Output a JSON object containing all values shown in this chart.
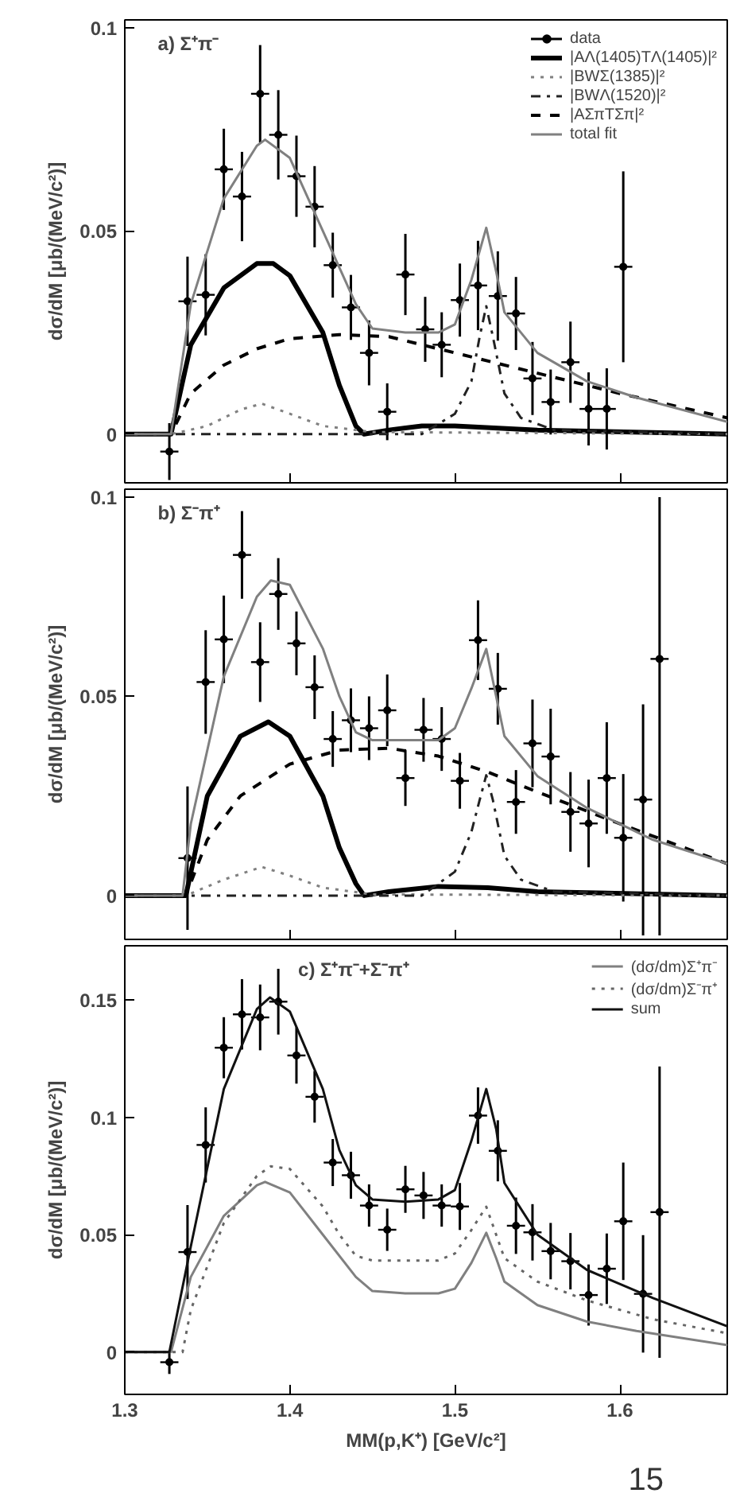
{
  "chart_data": [
    {
      "type": "line",
      "annotations": [
        "a) Σ⁺π⁻"
      ],
      "ylabel": "dσ/dM [μb/(MeV/c²)]",
      "xlim": [
        1.3,
        1.665
      ],
      "ylim": [
        -0.012,
        0.102
      ],
      "xticks": [
        1.3,
        1.4,
        1.5,
        1.6
      ],
      "yticks": [
        0,
        0.05,
        0.1
      ],
      "tick_labels": "y",
      "legend": "top right",
      "grid": false,
      "series": [
        {
          "name": "data",
          "type": "scatter",
          "marker": "circle",
          "color": "#000000",
          "x": [
            1.327,
            1.338,
            1.349,
            1.36,
            1.371,
            1.382,
            1.393,
            1.404,
            1.415,
            1.426,
            1.437,
            1.448,
            1.459,
            1.47,
            1.482,
            1.492,
            1.503,
            1.514,
            1.526,
            1.537,
            1.547,
            1.558,
            1.57,
            1.581,
            1.592,
            1.602
          ],
          "values": [
            -0.0043,
            0.0327,
            0.0343,
            0.0652,
            0.0585,
            0.0838,
            0.0737,
            0.0635,
            0.056,
            0.0416,
            0.0312,
            0.02,
            0.0055,
            0.0393,
            0.0258,
            0.022,
            0.033,
            0.0366,
            0.034,
            0.0297,
            0.0137,
            0.0079,
            0.0177,
            0.0062,
            0.0062,
            0.0412
          ],
          "xerrors": [
            0.0055,
            0.0055,
            0.0055,
            0.0055,
            0.0055,
            0.0055,
            0.0055,
            0.0055,
            0.0055,
            0.0055,
            0.0055,
            0.0055,
            0.0055,
            0.0055,
            0.0055,
            0.0055,
            0.0055,
            0.0055,
            0.0055,
            0.0055,
            0.0055,
            0.0055,
            0.0055,
            0.0055,
            0.0055,
            0.0055
          ],
          "errors": [
            0.007,
            0.011,
            0.01,
            0.01,
            0.011,
            0.012,
            0.011,
            0.01,
            0.01,
            0.008,
            0.008,
            0.008,
            0.007,
            0.01,
            0.008,
            0.008,
            0.009,
            0.011,
            0.011,
            0.009,
            0.009,
            0.008,
            0.01,
            0.009,
            0.01,
            0.0235
          ]
        },
        {
          "name": "|AΛ(1405)TΛ(1405)|²",
          "line_style": "solid",
          "color": "#000000",
          "x": [
            1.3,
            1.328,
            1.34,
            1.36,
            1.38,
            1.39,
            1.4,
            1.42,
            1.43,
            1.44,
            1.445,
            1.46,
            1.48,
            1.5,
            1.55,
            1.665
          ],
          "values": [
            0,
            0,
            0.022,
            0.036,
            0.042,
            0.042,
            0.039,
            0.025,
            0.012,
            0.002,
            0,
            0.001,
            0.002,
            0.002,
            0.001,
            0
          ]
        },
        {
          "name": "|BWΣ(1385)|²",
          "line_style": "dotted",
          "color": "#808080",
          "x": [
            1.3,
            1.328,
            1.35,
            1.37,
            1.383,
            1.4,
            1.42,
            1.45,
            1.665
          ],
          "values": [
            0,
            0,
            0.002,
            0.006,
            0.0075,
            0.005,
            0.002,
            0.0005,
            0
          ]
        },
        {
          "name": "|BWΛ(1520)|²",
          "line_style": "dashdot",
          "color": "#222222",
          "x": [
            1.3,
            1.48,
            1.5,
            1.51,
            1.515,
            1.519,
            1.523,
            1.53,
            1.54,
            1.56,
            1.665
          ],
          "values": [
            0,
            0,
            0.005,
            0.013,
            0.024,
            0.0315,
            0.024,
            0.01,
            0.004,
            0.001,
            0
          ]
        },
        {
          "name": "|AΣπTΣπ|²",
          "line_style": "dashed",
          "color": "#000000",
          "x": [
            1.3,
            1.328,
            1.34,
            1.36,
            1.38,
            1.4,
            1.43,
            1.46,
            1.5,
            1.55,
            1.6,
            1.665
          ],
          "values": [
            0,
            0,
            0.01,
            0.017,
            0.021,
            0.0235,
            0.0245,
            0.024,
            0.02,
            0.015,
            0.01,
            0.004
          ]
        },
        {
          "name": "total fit",
          "line_style": "solid",
          "color": "#808080",
          "x": [
            1.3,
            1.328,
            1.34,
            1.36,
            1.38,
            1.385,
            1.4,
            1.42,
            1.44,
            1.45,
            1.47,
            1.49,
            1.5,
            1.51,
            1.519,
            1.525,
            1.53,
            1.55,
            1.58,
            1.61,
            1.665
          ],
          "values": [
            0,
            0,
            0.032,
            0.058,
            0.071,
            0.0725,
            0.068,
            0.05,
            0.032,
            0.026,
            0.025,
            0.025,
            0.027,
            0.038,
            0.0508,
            0.04,
            0.03,
            0.02,
            0.013,
            0.009,
            0.003
          ]
        }
      ]
    },
    {
      "type": "line",
      "annotations": [
        "b) Σ⁻π⁺"
      ],
      "ylabel": "dσ/dM [μb/(MeV/c²)]",
      "xlim": [
        1.3,
        1.665
      ],
      "ylim": [
        -0.011,
        0.102
      ],
      "xticks": [
        1.3,
        1.4,
        1.5,
        1.6
      ],
      "yticks": [
        0,
        0.05,
        0.1
      ],
      "tick_labels": "y",
      "grid": false,
      "series": [
        {
          "type": "scatter",
          "marker": "circle",
          "color": "#000000",
          "x": [
            1.338,
            1.349,
            1.36,
            1.371,
            1.382,
            1.393,
            1.404,
            1.415,
            1.426,
            1.437,
            1.448,
            1.459,
            1.47,
            1.481,
            1.492,
            1.503,
            1.514,
            1.526,
            1.537,
            1.547,
            1.558,
            1.57,
            1.581,
            1.592,
            1.602,
            1.614,
            1.624
          ],
          "values": [
            0.0094,
            0.0536,
            0.0643,
            0.0855,
            0.0586,
            0.0757,
            0.0633,
            0.0523,
            0.0393,
            0.044,
            0.042,
            0.0465,
            0.0295,
            0.0416,
            0.0393,
            0.0288,
            0.0641,
            0.0519,
            0.0235,
            0.0382,
            0.0349,
            0.021,
            0.0181,
            0.0295,
            0.0145,
            0.0241,
            0.0594
          ],
          "xerrors": [
            0.0055,
            0.0055,
            0.0055,
            0.0055,
            0.0055,
            0.0055,
            0.0055,
            0.0055,
            0.0055,
            0.0055,
            0.0055,
            0.0055,
            0.0055,
            0.0055,
            0.0055,
            0.0055,
            0.0055,
            0.0055,
            0.0055,
            0.0055,
            0.0055,
            0.0055,
            0.0055,
            0.0055,
            0.0055,
            0.0055,
            0.0055
          ],
          "errors": [
            0.018,
            0.013,
            0.011,
            0.011,
            0.01,
            0.009,
            0.008,
            0.008,
            0.007,
            0.008,
            0.008,
            0.009,
            0.007,
            0.008,
            0.008,
            0.007,
            0.01,
            0.009,
            0.008,
            0.011,
            0.012,
            0.01,
            0.011,
            0.014,
            0.016,
            [
              -0.01,
              0.048
            ],
            [
              -0.01,
              0.1
            ]
          ]
        },
        {
          "line_style": "solid",
          "color": "#000000",
          "x": [
            1.3,
            1.337,
            1.35,
            1.37,
            1.387,
            1.4,
            1.42,
            1.43,
            1.44,
            1.445,
            1.46,
            1.49,
            1.52,
            1.55,
            1.665
          ],
          "values": [
            0,
            0,
            0.025,
            0.04,
            0.0436,
            0.04,
            0.025,
            0.012,
            0.003,
            0,
            0.001,
            0.0023,
            0.002,
            0.001,
            0
          ]
        },
        {
          "line_style": "dotted",
          "color": "#808080",
          "x": [
            1.3,
            1.337,
            1.36,
            1.383,
            1.4,
            1.42,
            1.45,
            1.665
          ],
          "values": [
            0,
            0,
            0.004,
            0.0072,
            0.005,
            0.002,
            0.0003,
            0
          ]
        },
        {
          "line_style": "dashdot",
          "color": "#222222",
          "x": [
            1.3,
            1.48,
            1.5,
            1.51,
            1.515,
            1.519,
            1.523,
            1.53,
            1.54,
            1.56,
            1.665
          ],
          "values": [
            0,
            0,
            0.006,
            0.016,
            0.024,
            0.0302,
            0.024,
            0.01,
            0.004,
            0.001,
            0
          ]
        },
        {
          "line_style": "dashed",
          "color": "#000000",
          "x": [
            1.3,
            1.337,
            1.35,
            1.37,
            1.4,
            1.43,
            1.46,
            1.49,
            1.52,
            1.55,
            1.6,
            1.665
          ],
          "values": [
            0,
            0,
            0.014,
            0.025,
            0.033,
            0.0365,
            0.037,
            0.035,
            0.031,
            0.026,
            0.018,
            0.008
          ]
        },
        {
          "line_style": "solid",
          "color": "#808080",
          "x": [
            1.3,
            1.335,
            1.34,
            1.36,
            1.38,
            1.3885,
            1.4,
            1.42,
            1.43,
            1.44,
            1.45,
            1.47,
            1.49,
            1.5,
            1.51,
            1.519,
            1.525,
            1.53,
            1.55,
            1.58,
            1.62,
            1.665
          ],
          "values": [
            0,
            0,
            0.018,
            0.055,
            0.075,
            0.0791,
            0.078,
            0.062,
            0.05,
            0.041,
            0.039,
            0.039,
            0.039,
            0.042,
            0.052,
            0.0619,
            0.05,
            0.04,
            0.03,
            0.022,
            0.014,
            0.008
          ]
        }
      ]
    },
    {
      "type": "line",
      "annotations": [
        "c) Σ⁺π⁻+Σ⁻π⁺",
        "15"
      ],
      "ylabel": "dσ/dM [μb/(MeV/c²)]",
      "xlabel": "MM(p,K⁺) [GeV/c²]",
      "xlim": [
        1.3,
        1.665
      ],
      "ylim": [
        -0.018,
        0.173
      ],
      "xticks": [
        1.3,
        1.4,
        1.5,
        1.6
      ],
      "yticks": [
        0,
        0.05,
        0.1,
        0.15
      ],
      "legend": "top right",
      "grid": false,
      "series": [
        {
          "type": "scatter",
          "marker": "circle",
          "color": "#000000",
          "x": [
            1.327,
            1.338,
            1.349,
            1.36,
            1.371,
            1.382,
            1.393,
            1.404,
            1.415,
            1.426,
            1.437,
            1.448,
            1.459,
            1.47,
            1.481,
            1.492,
            1.503,
            1.514,
            1.526,
            1.537,
            1.547,
            1.558,
            1.57,
            1.581,
            1.592,
            1.602,
            1.614,
            1.624
          ],
          "values": [
            -0.0043,
            0.0426,
            0.0882,
            0.1296,
            0.1438,
            0.1425,
            0.1492,
            0.1263,
            0.1087,
            0.0807,
            0.0753,
            0.0624,
            0.0521,
            0.0693,
            0.0667,
            0.0624,
            0.062,
            0.1007,
            0.0857,
            0.0538,
            0.051,
            0.043,
            0.0387,
            0.0243,
            0.0355,
            0.0557,
            0.0248,
            0.0596
          ],
          "xerrors": [
            0.0055,
            0.0055,
            0.0055,
            0.0055,
            0.0055,
            0.0055,
            0.0055,
            0.0055,
            0.0055,
            0.0055,
            0.0055,
            0.0055,
            0.0055,
            0.0055,
            0.0055,
            0.0055,
            0.0055,
            0.0055,
            0.0055,
            0.0055,
            0.0055,
            0.0055,
            0.0055,
            0.0055,
            0.0055,
            0.0055,
            0.0055,
            0.0055
          ],
          "errors": [
            0.005,
            0.02,
            0.016,
            0.013,
            0.015,
            0.014,
            0.014,
            0.012,
            0.011,
            0.01,
            0.01,
            0.009,
            0.009,
            0.01,
            0.01,
            0.009,
            0.01,
            0.012,
            0.013,
            0.012,
            0.012,
            0.012,
            0.012,
            0.013,
            0.015,
            0.025,
            0.025,
            0.062
          ]
        },
        {
          "name": "(dσ/dm)Σ⁺π⁻",
          "line_style": "solid",
          "color": "#808080",
          "x": [
            1.3,
            1.328,
            1.34,
            1.36,
            1.38,
            1.385,
            1.4,
            1.42,
            1.44,
            1.45,
            1.47,
            1.49,
            1.5,
            1.51,
            1.519,
            1.525,
            1.53,
            1.55,
            1.58,
            1.61,
            1.665
          ],
          "values": [
            0,
            0,
            0.032,
            0.058,
            0.071,
            0.0725,
            0.068,
            0.05,
            0.032,
            0.026,
            0.025,
            0.025,
            0.027,
            0.038,
            0.0508,
            0.04,
            0.03,
            0.02,
            0.013,
            0.009,
            0.003
          ]
        },
        {
          "name": "(dσ/dm)Σ⁻π⁺",
          "line_style": "dotted",
          "color": "#666666",
          "x": [
            1.3,
            1.335,
            1.34,
            1.36,
            1.38,
            1.3885,
            1.4,
            1.42,
            1.43,
            1.44,
            1.45,
            1.47,
            1.49,
            1.5,
            1.51,
            1.519,
            1.525,
            1.53,
            1.55,
            1.58,
            1.62,
            1.665
          ],
          "values": [
            0,
            0,
            0.018,
            0.055,
            0.075,
            0.0791,
            0.078,
            0.062,
            0.05,
            0.041,
            0.039,
            0.039,
            0.039,
            0.042,
            0.052,
            0.0619,
            0.05,
            0.04,
            0.03,
            0.022,
            0.014,
            0.008
          ]
        },
        {
          "name": "sum",
          "line_style": "solid",
          "color": "#111111",
          "x": [
            1.3,
            1.327,
            1.34,
            1.36,
            1.38,
            1.388,
            1.4,
            1.42,
            1.43,
            1.44,
            1.45,
            1.47,
            1.49,
            1.5,
            1.51,
            1.519,
            1.525,
            1.53,
            1.55,
            1.58,
            1.62,
            1.665
          ],
          "values": [
            0,
            0,
            0.045,
            0.112,
            0.146,
            0.151,
            0.145,
            0.112,
            0.086,
            0.071,
            0.065,
            0.064,
            0.065,
            0.069,
            0.09,
            0.112,
            0.095,
            0.072,
            0.05,
            0.035,
            0.023,
            0.011
          ]
        }
      ]
    }
  ]
}
